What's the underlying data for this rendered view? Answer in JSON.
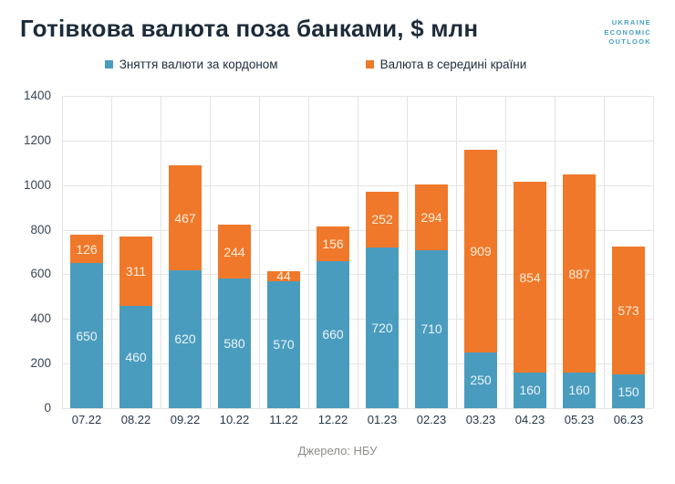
{
  "header": {
    "title": "Готівкова валюта поза банками, $ млн",
    "title_color": "#1C2B3A",
    "logo_lines": [
      "UKRAINE",
      "ECONOMIC",
      "OUTLOOK"
    ],
    "logo_color": "#4AA0C2"
  },
  "footer": {
    "source": "Джерело: НБУ"
  },
  "chart_data": {
    "type": "bar",
    "stacked": true,
    "title": "Готівкова валюта поза банками, $ млн",
    "categories": [
      "07.22",
      "08.22",
      "09.22",
      "10.22",
      "11.22",
      "12.22",
      "01.23",
      "02.23",
      "03.23",
      "04.23",
      "05.23",
      "06.23"
    ],
    "series": [
      {
        "name": "Зняття валюти за кордоном",
        "color": "#4A9CBE",
        "label_color": "#EAF4F8",
        "values": [
          650,
          460,
          620,
          580,
          570,
          660,
          720,
          710,
          250,
          160,
          160,
          150
        ]
      },
      {
        "name": "Валюта в середині країни",
        "color": "#F0782A",
        "label_color": "#FCEFDB",
        "values": [
          126,
          311,
          467,
          244,
          44,
          156,
          252,
          294,
          909,
          854,
          887,
          573
        ]
      }
    ],
    "totals": [
      776,
      771,
      1087,
      824,
      614,
      816,
      972,
      1004,
      1159,
      1014,
      1047,
      723
    ],
    "ylim": [
      0,
      1400
    ],
    "yticks": [
      0,
      200,
      400,
      600,
      800,
      1000,
      1200,
      1400
    ],
    "xlabel": "",
    "ylabel": "",
    "grid": true,
    "grid_color": "#E4E4E4",
    "axis_text_color": "#3A4754",
    "legend_position": "top",
    "source": "Джерело: НБУ"
  }
}
